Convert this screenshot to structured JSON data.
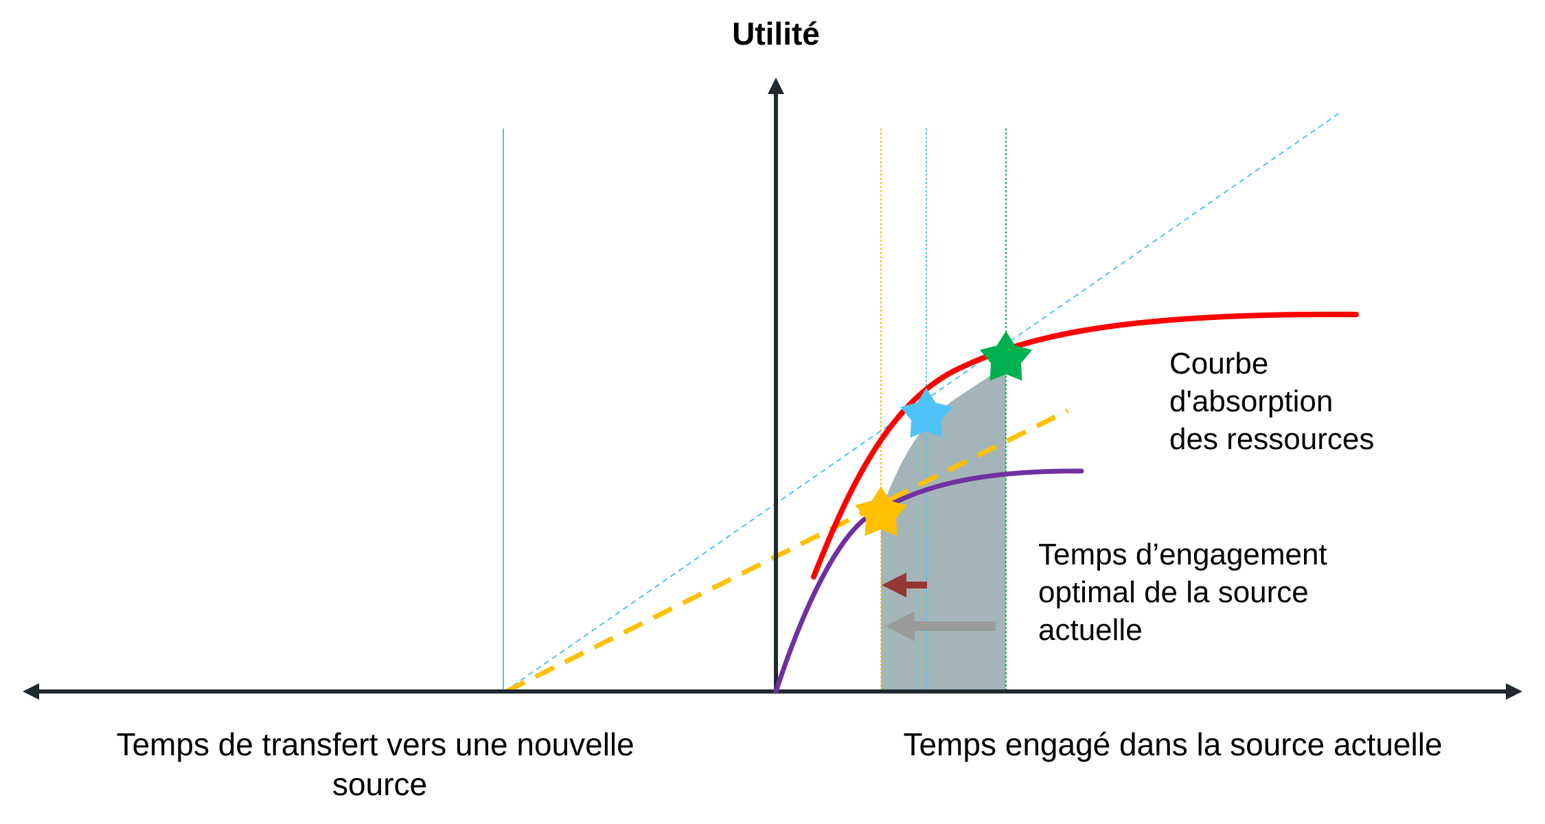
{
  "y_axis_title": "Utilité",
  "annotations": {
    "curve_label": [
      "Courbe",
      "d'absorption",
      "des ressources"
    ],
    "engagement_label": [
      "Temps d’engagement",
      "optimal de la source",
      "actuelle"
    ]
  },
  "x_axis": {
    "left_label": [
      "Temps de transfert vers une nouvelle",
      "source"
    ],
    "right_label": "Temps engagé dans la source actuelle"
  },
  "colors": {
    "axis": "#1f2a2f",
    "red_curve": "#ff0000",
    "purple_curve": "#7030a0",
    "yellow_dashed": "#ffc000",
    "blue_dotted": "#4fc3f7",
    "green_star": "#00b050",
    "blue_star": "#4fc3f7",
    "yellow_star": "#ffc000",
    "shaded_area": "#7f999c",
    "dark_red_arrow": "#943634",
    "gray_arrow": "#9a9a9a"
  },
  "icons": {
    "green_star": "star-icon",
    "blue_star": "star-icon",
    "yellow_star": "star-icon"
  }
}
